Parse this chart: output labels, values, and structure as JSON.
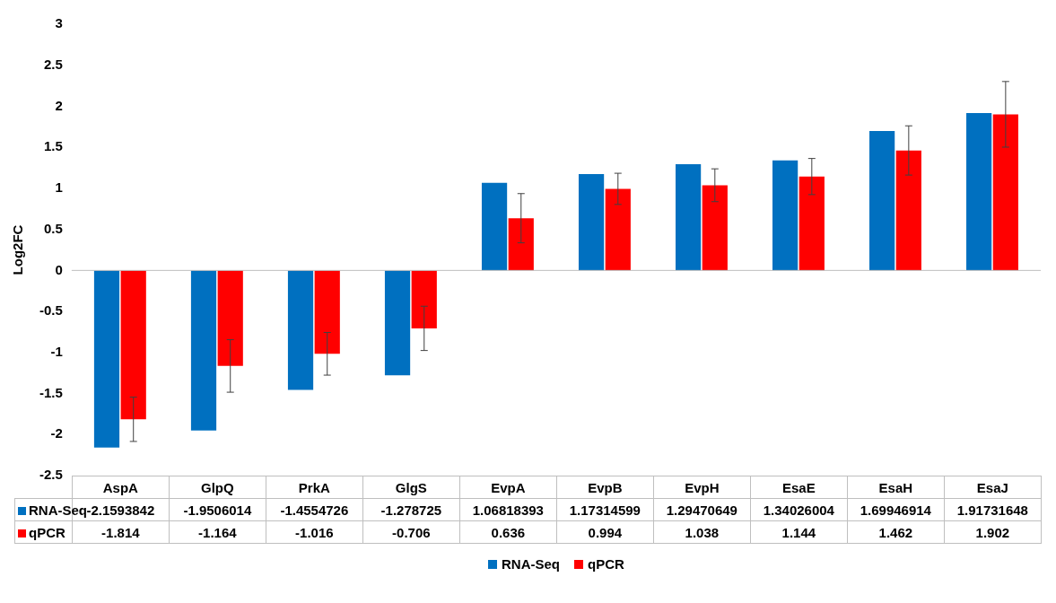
{
  "chart_data": {
    "type": "bar",
    "ylabel": "Log2FC",
    "categories": [
      "AspA",
      "GlpQ",
      "PrkA",
      "GlgS",
      "EvpA",
      "EvpB",
      "EvpH",
      "EsaE",
      "EsaH",
      "EsaJ"
    ],
    "series": [
      {
        "name": "RNA-Seq",
        "color": "#0070c0",
        "values": [
          -2.1593842,
          -1.9506014,
          -1.4554726,
          -1.278725,
          1.06818393,
          1.17314599,
          1.29470649,
          1.34026004,
          1.69946914,
          1.91731648
        ]
      },
      {
        "name": "qPCR",
        "color": "#ff0000",
        "values": [
          -1.814,
          -1.164,
          -1.016,
          -0.706,
          0.636,
          0.994,
          1.038,
          1.144,
          1.462,
          1.902
        ],
        "errors": [
          0.27,
          0.32,
          0.26,
          0.27,
          0.3,
          0.19,
          0.2,
          0.22,
          0.3,
          0.4
        ]
      }
    ],
    "ylim": [
      -2.5,
      3
    ],
    "yticks": [
      -2.5,
      -2,
      -1.5,
      -1,
      -0.5,
      0,
      0.5,
      1,
      1.5,
      2,
      2.5,
      3
    ],
    "grid": false,
    "ref_lines": [
      {
        "axis": "y",
        "value": 0,
        "color": "#bfbfbf"
      }
    ],
    "legend": "bottom",
    "data_labels": true
  }
}
